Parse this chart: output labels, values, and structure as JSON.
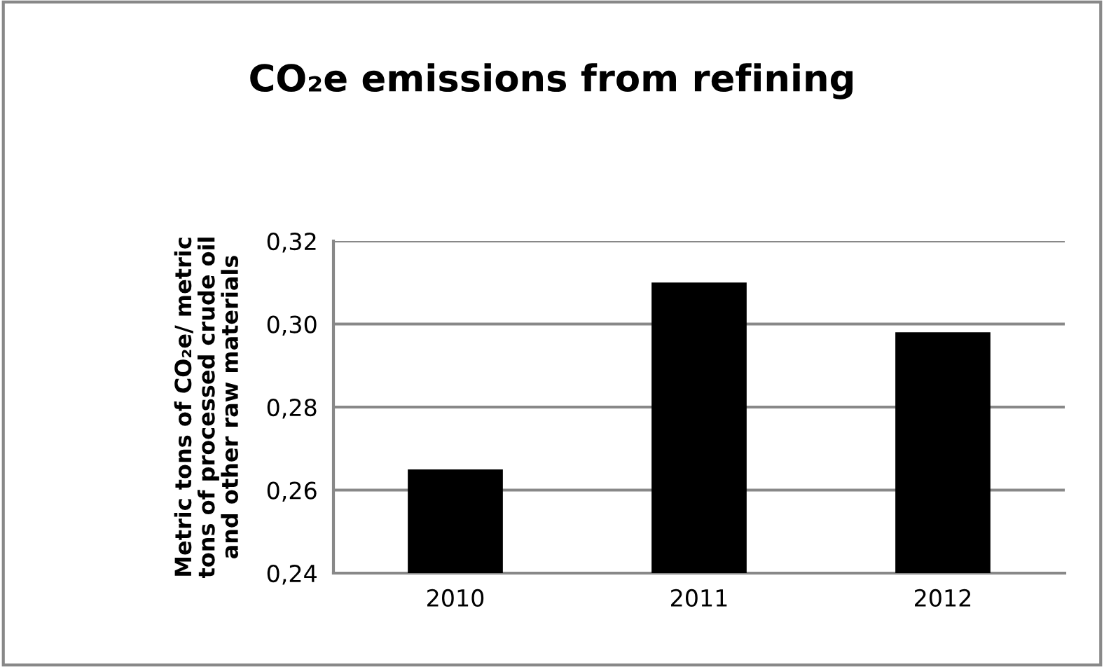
{
  "chart_data": {
    "type": "bar",
    "title": "CO₂e emissions from refining",
    "ylabel": "Metric tons of CO₂e/ metric\ntons of processed crude oil\nand other raw materials",
    "categories": [
      "2010",
      "2011",
      "2012"
    ],
    "values": [
      0.265,
      0.31,
      0.298
    ],
    "color": "#000000",
    "ylim": [
      0.24,
      0.32
    ],
    "yticks": [
      {
        "value": 0.24,
        "label": "0,24"
      },
      {
        "value": 0.26,
        "label": "0,26"
      },
      {
        "value": 0.28,
        "label": "0,28"
      },
      {
        "value": 0.3,
        "label": "0,30"
      },
      {
        "value": 0.32,
        "label": "0,32"
      }
    ],
    "grid": "y",
    "legend": false
  }
}
